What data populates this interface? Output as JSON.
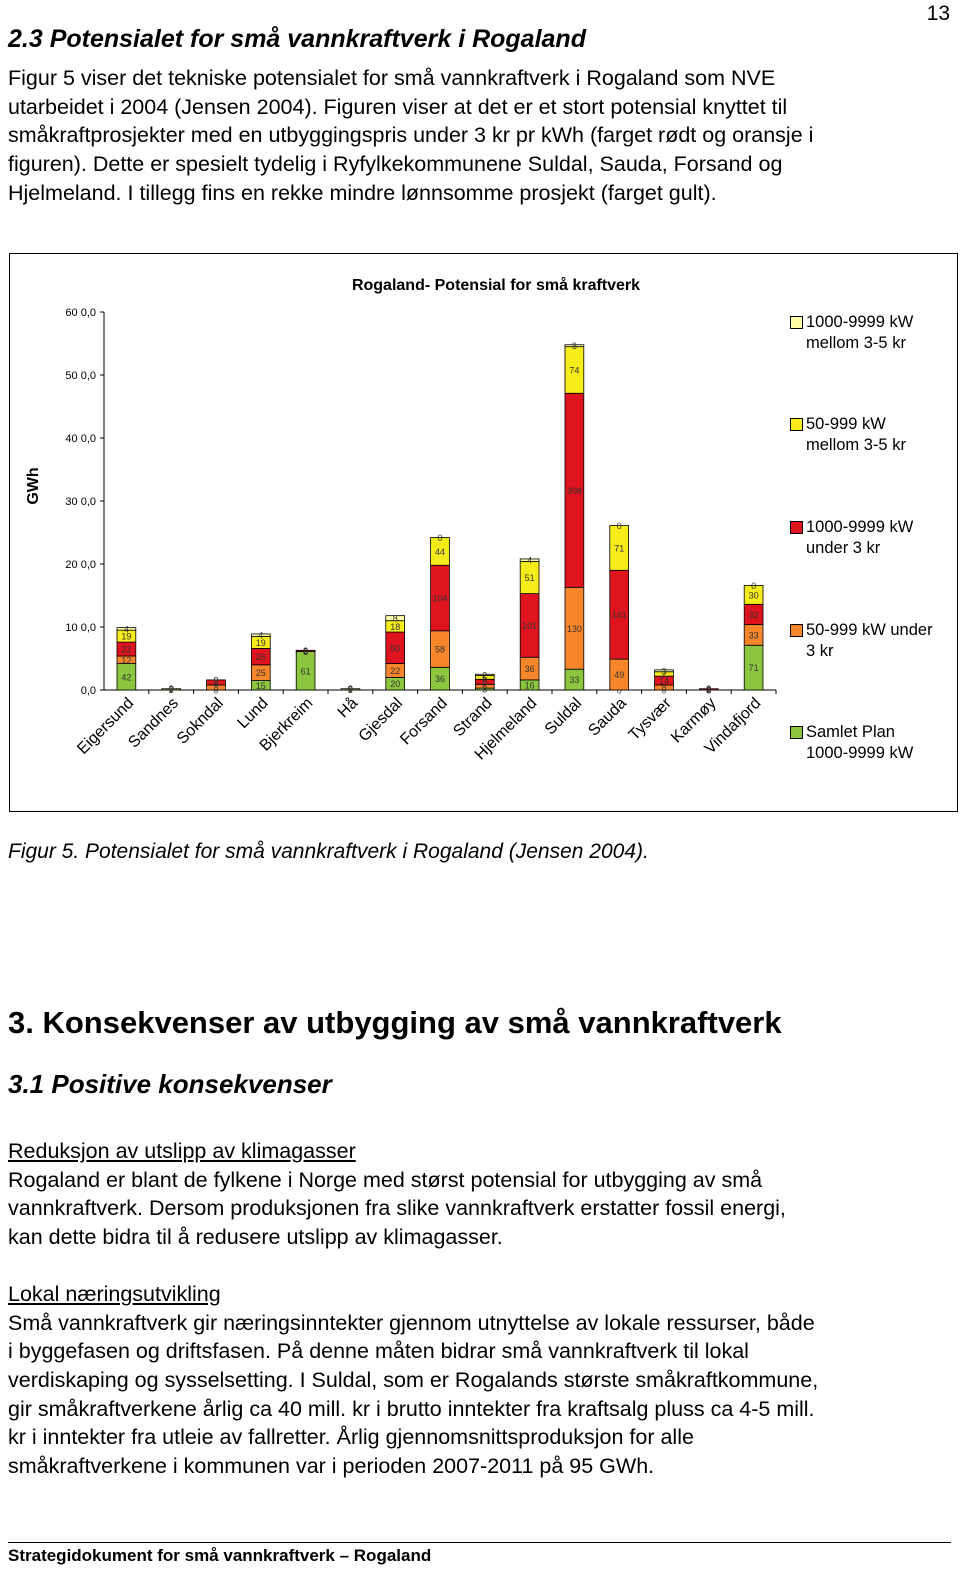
{
  "page_number": "13",
  "section_heading": "2.3 Potensialet for små vannkraftverk i Rogaland",
  "intro_lines": [
    "Figur 5 viser det tekniske potensialet for små vannkraftverk i Rogaland som NVE",
    "utarbeidet i 2004 (Jensen 2004). Figuren viser at det er et stort potensial knyttet til",
    "småkraftprosjekter med en utbyggingspris under 3 kr pr kWh (farget rødt og oransje i",
    "figuren). Dette er spesielt tydelig i Ryfylkekommunene Suldal, Sauda, Forsand og",
    "Hjelmeland. I tillegg fins en rekke mindre lønnsomme prosjekt (farget gult)."
  ],
  "chart_data": {
    "type": "stacked-bar",
    "title": "Rogaland- Potensial for små kraftverk",
    "y_axis_label": "GWh",
    "categories": [
      "Eigersund",
      "Sandnes",
      "Sokndal",
      "Lund",
      "Bjerkreim",
      "Hå",
      "Gjesdal",
      "Forsand",
      "Strand",
      "Hjelmeland",
      "Suldal",
      "Sauda",
      "Tysvær",
      "Karmøy",
      "Vindafjord"
    ],
    "series": [
      {
        "name": "Samlet Plan 1000-9999 kW",
        "color": "#8cc63f",
        "values": [
          42,
          2,
          0,
          15,
          61,
          2,
          20,
          36,
          3,
          16,
          33,
          0,
          0,
          0,
          71
        ]
      },
      {
        "name": "50-999 kW under 3 kr",
        "color": "#f7862a",
        "values": [
          12,
          0,
          8,
          25,
          0,
          0,
          22,
          58,
          6,
          36,
          130,
          49,
          8,
          0,
          33
        ]
      },
      {
        "name": "1000-9999 kW under 3 kr",
        "color": "#e0141e",
        "values": [
          22,
          0,
          8,
          26,
          2,
          0,
          50,
          104,
          8,
          101,
          308,
          141,
          14,
          2,
          32
        ]
      },
      {
        "name": "50-999 kW mellom 3-5 kr",
        "color": "#f5ec1a",
        "values": [
          19,
          0,
          0,
          19,
          0,
          0,
          18,
          44,
          6,
          51,
          74,
          71,
          7,
          0,
          30
        ]
      },
      {
        "name": "1000-9999 kW mellom 3-5 kr",
        "color": "#ffffa8",
        "values": [
          4,
          0,
          0,
          4,
          0,
          0,
          8,
          0,
          2,
          4,
          3,
          0,
          3,
          0,
          0
        ]
      }
    ],
    "ylim": [
      0,
      600
    ],
    "yticks": [
      {
        "value": 0,
        "label": "0,0"
      },
      {
        "value": 100,
        "label": "10 0,0"
      },
      {
        "value": 200,
        "label": "20 0,0"
      },
      {
        "value": 300,
        "label": "30 0,0"
      },
      {
        "value": 400,
        "label": "40 0,0"
      },
      {
        "value": 500,
        "label": "50 0,0"
      },
      {
        "value": 600,
        "label": "60 0,0"
      }
    ],
    "grid": false
  },
  "figure_caption": "Figur 5. Potensialet for små vannkraftverk i Rogaland (Jensen 2004).",
  "chapter_heading": "3. Konsekvenser av utbygging av små vannkraftverk",
  "subsection_heading": "3.1 Positive konsekvenser",
  "subsections": [
    {
      "title": "Reduksjon av utslipp av klimagasser",
      "lines": [
        "Rogaland er blant de fylkene i Norge med størst potensial for utbygging av små",
        "vannkraftverk. Dersom produksjonen fra slike vannkraftverk erstatter fossil energi,",
        "kan dette bidra til å redusere utslipp av klimagasser."
      ]
    },
    {
      "title": "Lokal næringsutvikling",
      "lines": [
        "Små vannkraftverk gir næringsinntekter gjennom utnyttelse av lokale ressurser, både",
        "i byggefasen og driftsfasen. På denne måten bidrar små vannkraftverk til lokal",
        "verdiskaping og sysselsetting. I Suldal, som er Rogalands største småkraftkommune,",
        "gir småkraftverkene årlig ca 40 mill. kr i brutto inntekter fra kraftsalg pluss ca 4-5 mill.",
        "kr i inntekter fra utleie av fallretter. Årlig gjennomsnittsproduksjon for alle",
        "småkraftverkene i kommunen var i perioden 2007-2011 på 95 GWh."
      ]
    }
  ],
  "footer": "Strategidokument for små vannkraftverk – Rogaland"
}
